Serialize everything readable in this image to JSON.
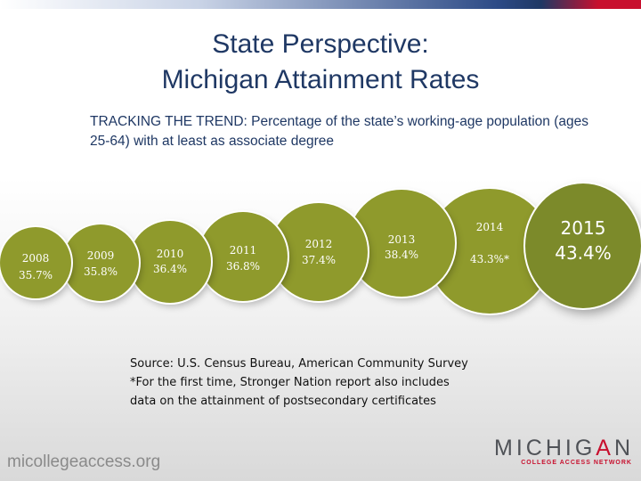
{
  "title_lines": [
    "State Perspective:",
    "Michigan Attainment Rates"
  ],
  "subtitle": {
    "lead": "TRACKING THE TREND:",
    "rest": " Percentage of the state’s working-age population (ages 25-64) with at least as associate degree"
  },
  "attainment": [
    {
      "year": "2008",
      "label": "35.7%",
      "value": 35.7
    },
    {
      "year": "2009",
      "label": "35.8%",
      "value": 35.8
    },
    {
      "year": "2010",
      "label": "36.4%",
      "value": 36.4
    },
    {
      "year": "2011",
      "label": "36.8%",
      "value": 36.8
    },
    {
      "year": "2012",
      "label": "37.4%",
      "value": 37.4
    },
    {
      "year": "2013",
      "label": "38.4%",
      "value": 38.4
    },
    {
      "year": "2014",
      "label": "43.3%*",
      "value": 43.3
    },
    {
      "year": "2015",
      "label": "43.4%",
      "value": 43.4
    }
  ],
  "source_lines": [
    "Source: U.S. Census Bureau, American Community Survey",
    "*For the first time, Stronger Nation report also includes",
    "data on the attainment of postsecondary certificates"
  ],
  "footer": {
    "website": "micollegeaccess.org",
    "logo_word_left": "MICHIG",
    "logo_word_accent": "A",
    "logo_word_right": "N",
    "logo_tagline": "COLLEGE ACCESS NETWORK"
  },
  "colors": {
    "title": "#1f3864",
    "bubble": "#8f9a2c",
    "bubble_big": "#7c8a2a",
    "bar_blue": "#1f3864",
    "bar_red": "#c8102e"
  }
}
